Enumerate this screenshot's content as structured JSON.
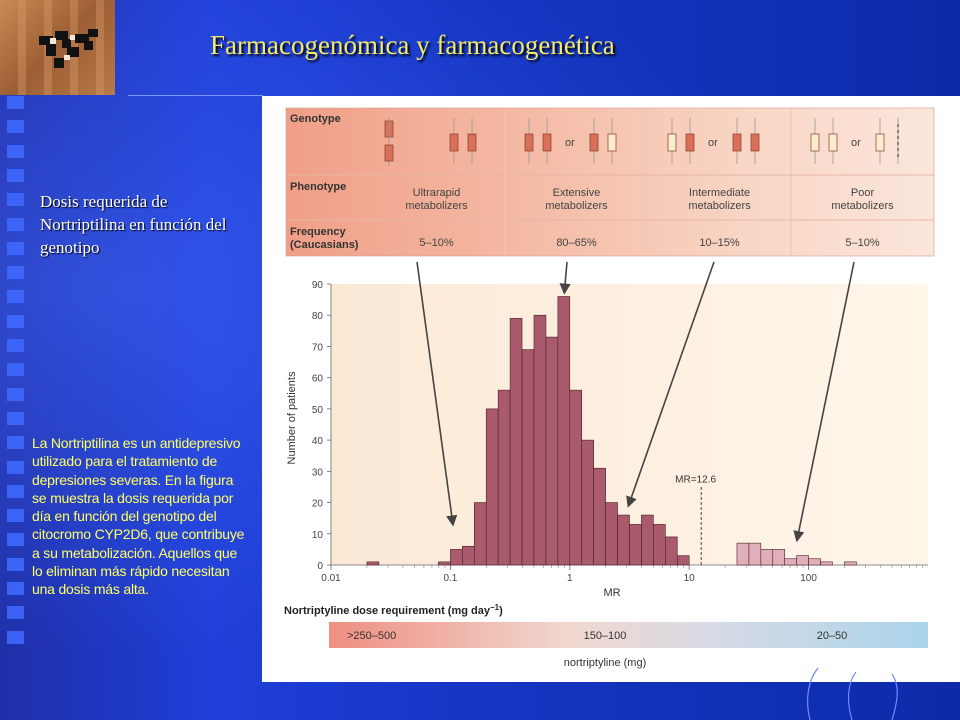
{
  "slide": {
    "title": "Farmacogenómica  y farmacogenética",
    "subtitle": "Dosis requerida de Nortriptilina en función del genotipo",
    "description": "La Nortriptilina es un antidepresivo utilizado para el tratamiento de depresiones severas. En la figura se muestra la dosis requerida por día en función del genotipo del citocromo CYP2D6, que contribuye a su metabolización. Aquellos que lo eliminan más rápido necesitan una dosis más alta."
  },
  "genotype_table": {
    "row_labels": {
      "genotype": "Genotype",
      "phenotype": "Phenotype",
      "frequency": [
        "Frequency",
        "(Caucasians)"
      ]
    },
    "or_label": "or",
    "columns": [
      {
        "phenotype": [
          "Ultrarapid",
          "metabolizers"
        ],
        "frequency": "5–10%"
      },
      {
        "phenotype": [
          "Extensive",
          "metabolizers"
        ],
        "frequency": "80–65%"
      },
      {
        "phenotype": [
          "Intermediate",
          "metabolizers"
        ],
        "frequency": "10–15%"
      },
      {
        "phenotype": [
          "Poor",
          "metabolizers"
        ],
        "frequency": "5–10%"
      }
    ],
    "colors": [
      "#f0a893",
      "#f5c0ac",
      "#f8d2c2",
      "#fbe3d6"
    ]
  },
  "chart_data": {
    "type": "bar",
    "ylabel": "Number of patients",
    "xlabel": "MR",
    "x_scale": "log",
    "xlim": [
      0.01,
      1000
    ],
    "ylim": [
      0,
      90
    ],
    "y_ticks": [
      0,
      10,
      20,
      30,
      40,
      50,
      60,
      70,
      80,
      90
    ],
    "x_ticks": [
      {
        "value": 0.01,
        "label": "0.01"
      },
      {
        "value": 0.1,
        "label": "0.1"
      },
      {
        "value": 1,
        "label": "1"
      },
      {
        "value": 10,
        "label": "10"
      },
      {
        "value": 100,
        "label": "100"
      }
    ],
    "bin_width_log10": 0.1,
    "bins": [
      {
        "left": 0.02,
        "value": 1,
        "group": "extensive"
      },
      {
        "left": 0.0794,
        "value": 1,
        "group": "extensive"
      },
      {
        "left": 0.1,
        "value": 5,
        "group": "extensive"
      },
      {
        "left": 0.1259,
        "value": 6,
        "group": "extensive"
      },
      {
        "left": 0.1585,
        "value": 20,
        "group": "extensive"
      },
      {
        "left": 0.1995,
        "value": 50,
        "group": "extensive"
      },
      {
        "left": 0.2512,
        "value": 56,
        "group": "extensive"
      },
      {
        "left": 0.3162,
        "value": 79,
        "group": "extensive"
      },
      {
        "left": 0.3981,
        "value": 69,
        "group": "extensive"
      },
      {
        "left": 0.5012,
        "value": 80,
        "group": "extensive"
      },
      {
        "left": 0.631,
        "value": 73,
        "group": "extensive"
      },
      {
        "left": 0.7943,
        "value": 86,
        "group": "extensive"
      },
      {
        "left": 1.0,
        "value": 56,
        "group": "extensive"
      },
      {
        "left": 1.2589,
        "value": 40,
        "group": "extensive"
      },
      {
        "left": 1.5849,
        "value": 31,
        "group": "extensive"
      },
      {
        "left": 1.9953,
        "value": 20,
        "group": "extensive"
      },
      {
        "left": 2.5119,
        "value": 16,
        "group": "extensive"
      },
      {
        "left": 3.1623,
        "value": 13,
        "group": "extensive"
      },
      {
        "left": 3.9811,
        "value": 16,
        "group": "extensive"
      },
      {
        "left": 5.0119,
        "value": 13,
        "group": "extensive"
      },
      {
        "left": 6.3096,
        "value": 9,
        "group": "extensive"
      },
      {
        "left": 7.9433,
        "value": 3,
        "group": "extensive"
      },
      {
        "left": 25.1189,
        "value": 7,
        "group": "poor"
      },
      {
        "left": 31.6228,
        "value": 7,
        "group": "poor"
      },
      {
        "left": 39.8107,
        "value": 5,
        "group": "poor"
      },
      {
        "left": 50.1187,
        "value": 5,
        "group": "poor"
      },
      {
        "left": 63.0957,
        "value": 2,
        "group": "poor"
      },
      {
        "left": 79.4328,
        "value": 3,
        "group": "poor"
      },
      {
        "left": 100.0,
        "value": 2,
        "group": "poor"
      },
      {
        "left": 125.8925,
        "value": 1,
        "group": "poor"
      },
      {
        "left": 199.5262,
        "value": 1,
        "group": "poor"
      }
    ],
    "bar_colors": {
      "extensive": "#a95a6c",
      "poor": "#e0afbb"
    },
    "threshold": {
      "value": 12.6,
      "label": "MR=12.6"
    },
    "arrows": [
      {
        "from": "Ultrarapid metabolizers",
        "to_x": 0.105
      },
      {
        "from": "Extensive metabolizers",
        "to_x": 0.9
      },
      {
        "from": "Intermediate metabolizers",
        "to_x": 3.1
      },
      {
        "from": "Poor metabolizers",
        "to_x": 80
      }
    ],
    "dose_bar": {
      "title": "Nortriptyline dose requirement (mg day",
      "title_superscript": "−1",
      "title_close": ")",
      "segments": [
        ">250–500",
        "150–100",
        "20–50"
      ],
      "caption": "nortriptyline (mg)",
      "gradient": [
        "#ee8f80",
        "#f2d7cf",
        "#d6dbe6",
        "#a9d4ea"
      ]
    }
  }
}
